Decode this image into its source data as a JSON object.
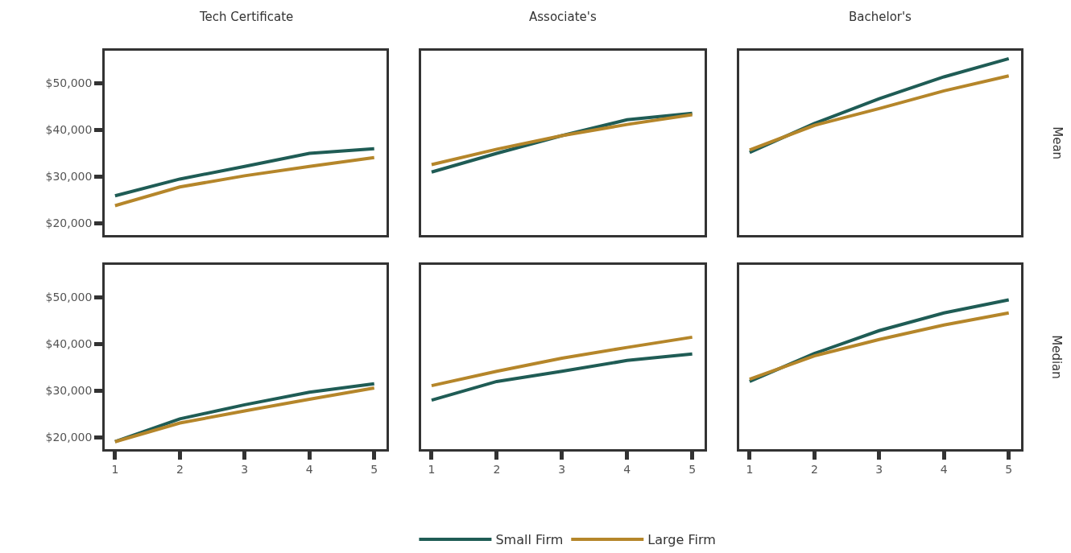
{
  "chart_data": [
    {
      "type": "line",
      "title": "Tech Certificate",
      "x": [
        1,
        2,
        3,
        4,
        5
      ],
      "xlim": [
        0.84,
        5.19
      ],
      "xticks": [
        1,
        2,
        3,
        4,
        5
      ],
      "ylim": [
        17500,
        57000
      ],
      "yticks": [
        {
          "value": 20000,
          "label": "$20,000"
        },
        {
          "value": 30000,
          "label": "$30,000"
        },
        {
          "value": 40000,
          "label": "$40,000"
        },
        {
          "value": 50000,
          "label": "$50,000"
        }
      ],
      "tick_labels": "y",
      "legend": "bottom",
      "series": [
        {
          "name": "Small Firm",
          "color": "#1f5c55",
          "values": [
            25900,
            29500,
            32200,
            35000,
            36000
          ]
        },
        {
          "name": "Large Firm",
          "color": "#b5862a",
          "values": [
            23800,
            27800,
            30200,
            32200,
            34100
          ]
        }
      ]
    },
    {
      "type": "line",
      "title": "Associate's",
      "x": [
        1,
        2,
        3,
        4,
        5
      ],
      "xlim": [
        0.84,
        5.19
      ],
      "xticks": [
        1,
        2,
        3,
        4,
        5
      ],
      "ylim": [
        17500,
        57000
      ],
      "tick_labels": false,
      "series": [
        {
          "color": "#1f5c55",
          "values": [
            31000,
            35000,
            38800,
            42200,
            43600
          ]
        },
        {
          "color": "#b5862a",
          "values": [
            32600,
            35900,
            38800,
            41200,
            43300
          ]
        }
      ]
    },
    {
      "type": "line",
      "title": "Bachelor's",
      "annotations": [
        "Mean"
      ],
      "x": [
        1,
        2,
        3,
        4,
        5
      ],
      "xlim": [
        0.84,
        5.19
      ],
      "xticks": [
        1,
        2,
        3,
        4,
        5
      ],
      "ylim": [
        17500,
        57000
      ],
      "tick_labels": false,
      "series": [
        {
          "color": "#1f5c55",
          "values": [
            35200,
            41400,
            46700,
            51400,
            55300
          ]
        },
        {
          "color": "#b5862a",
          "values": [
            35700,
            41000,
            44600,
            48400,
            51600
          ]
        }
      ]
    },
    {
      "type": "line",
      "x": [
        1,
        2,
        3,
        4,
        5
      ],
      "xlim": [
        0.84,
        5.19
      ],
      "xticks": [
        1,
        2,
        3,
        4,
        5
      ],
      "ylim": [
        17500,
        57000
      ],
      "yticks": [
        {
          "value": 20000,
          "label": "$20,000"
        },
        {
          "value": 30000,
          "label": "$30,000"
        },
        {
          "value": 40000,
          "label": "$40,000"
        },
        {
          "value": 50000,
          "label": "$50,000"
        }
      ],
      "series": [
        {
          "color": "#1f5c55",
          "values": [
            19100,
            24000,
            27000,
            29700,
            31500
          ]
        },
        {
          "color": "#b5862a",
          "values": [
            19100,
            23100,
            25700,
            28200,
            30600
          ]
        }
      ]
    },
    {
      "type": "line",
      "x": [
        1,
        2,
        3,
        4,
        5
      ],
      "xlim": [
        0.84,
        5.19
      ],
      "xticks": [
        1,
        2,
        3,
        4,
        5
      ],
      "ylim": [
        17500,
        57000
      ],
      "tick_labels": "x",
      "series": [
        {
          "color": "#1f5c55",
          "values": [
            28000,
            32000,
            34200,
            36500,
            37900
          ]
        },
        {
          "color": "#b5862a",
          "values": [
            31100,
            34200,
            37000,
            39300,
            41500
          ]
        }
      ]
    },
    {
      "type": "line",
      "annotations": [
        "Median"
      ],
      "x": [
        1,
        2,
        3,
        4,
        5
      ],
      "xlim": [
        0.84,
        5.19
      ],
      "xticks": [
        1,
        2,
        3,
        4,
        5
      ],
      "ylim": [
        17500,
        57000
      ],
      "tick_labels": "x",
      "series": [
        {
          "color": "#1f5c55",
          "values": [
            32000,
            38000,
            42900,
            46700,
            49500
          ]
        },
        {
          "color": "#b5862a",
          "values": [
            32500,
            37500,
            41000,
            44100,
            46700
          ]
        }
      ]
    }
  ]
}
